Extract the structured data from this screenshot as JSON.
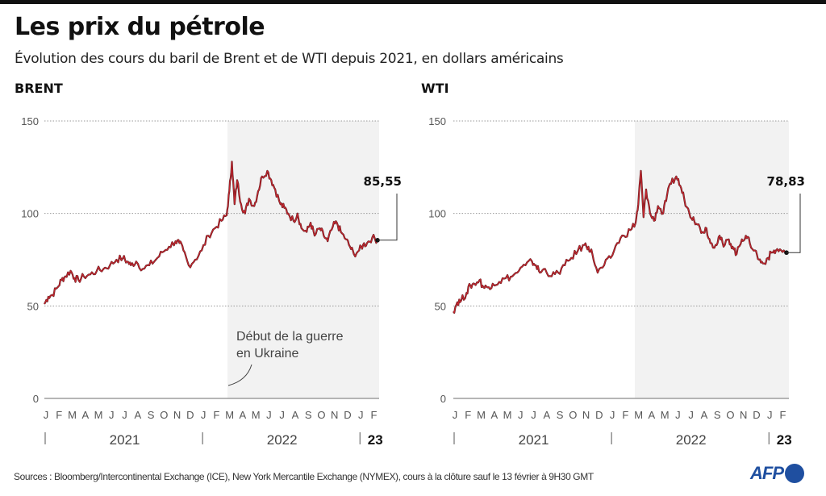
{
  "header": {
    "title": "Les prix du pétrole",
    "subtitle": "Évolution des cours du baril de Brent et de WTI depuis 2021, en dollars américains"
  },
  "annotation": {
    "war_line1": "Début de la guerre",
    "war_line2": "en Ukraine"
  },
  "footer": {
    "sources": "Sources : Bloomberg/Intercontinental Exchange (ICE), New York Mercantile  Exchange (NYMEX), cours à la clôture sauf le 13 février à 9H30 GMT",
    "logo_text": "AFP"
  },
  "colors": {
    "line": "#c4262e",
    "line_dark": "#5a1a1e",
    "shade": "#f2f2f2",
    "grid": "#9a9a9a",
    "logo": "#1f4fa0"
  },
  "chart_data": [
    {
      "type": "line",
      "title": "BRENT",
      "xlabel": "",
      "ylabel": "",
      "ylim": [
        0,
        150
      ],
      "yticks": [
        "0",
        "50",
        "100",
        "150"
      ],
      "grid": true,
      "month_labels": [
        "J",
        "F",
        "M",
        "A",
        "M",
        "J",
        "J",
        "A",
        "S",
        "O",
        "N",
        "D",
        "J",
        "F",
        "M",
        "A",
        "M",
        "J",
        "J",
        "A",
        "S",
        "O",
        "N",
        "D",
        "J",
        "F"
      ],
      "year_labels": [
        "2021",
        "2022",
        "23"
      ],
      "shaded_from": "2022-02-24",
      "shaded_label": "Début de la guerre en Ukraine",
      "last_value_label": "85,55",
      "x_months": [
        0,
        0.3,
        0.6,
        1.0,
        1.3,
        1.6,
        2.0,
        2.3,
        2.6,
        3.0,
        3.5,
        4.0,
        4.5,
        5.0,
        5.5,
        6.0,
        6.3,
        6.6,
        7.0,
        7.5,
        8.0,
        8.5,
        9.0,
        9.5,
        10.0,
        10.3,
        10.6,
        11.0,
        11.5,
        12.0,
        12.5,
        13.0,
        13.5,
        13.9,
        14.1,
        14.3,
        14.5,
        14.7,
        15.0,
        15.3,
        15.6,
        16.0,
        16.3,
        16.6,
        17.0,
        17.3,
        17.6,
        18.0,
        18.3,
        18.6,
        19.0,
        19.3,
        19.6,
        20.0,
        20.3,
        20.6,
        21.0,
        21.3,
        21.6,
        22.0,
        22.3,
        22.6,
        23.0,
        23.3,
        23.6,
        24.0,
        24.3,
        24.6,
        25.0,
        25.4
      ],
      "values": [
        51,
        55,
        56,
        60,
        64,
        66,
        69,
        65,
        64,
        66,
        67,
        69,
        70,
        72,
        75,
        76,
        74,
        72,
        74,
        70,
        72,
        75,
        79,
        82,
        85,
        84,
        80,
        72,
        75,
        80,
        88,
        92,
        96,
        99,
        112,
        128,
        105,
        118,
        105,
        100,
        108,
        104,
        112,
        120,
        123,
        118,
        113,
        105,
        103,
        100,
        96,
        100,
        92,
        90,
        95,
        88,
        92,
        88,
        85,
        93,
        95,
        90,
        86,
        82,
        78,
        80,
        83,
        84,
        87,
        85.55
      ],
      "series": [
        {
          "name": "Brent",
          "values_ref": "values"
        }
      ]
    },
    {
      "type": "line",
      "title": "WTI",
      "xlabel": "",
      "ylabel": "",
      "ylim": [
        0,
        150
      ],
      "yticks": [
        "0",
        "50",
        "100",
        "150"
      ],
      "grid": true,
      "month_labels": [
        "J",
        "F",
        "M",
        "A",
        "M",
        "J",
        "J",
        "A",
        "S",
        "O",
        "N",
        "D",
        "J",
        "F",
        "M",
        "A",
        "M",
        "J",
        "J",
        "A",
        "S",
        "O",
        "N",
        "D",
        "J",
        "F"
      ],
      "year_labels": [
        "2021",
        "2022",
        "23"
      ],
      "shaded_from": "2022-02-24",
      "last_value_label": "78,83",
      "x_months": [
        0,
        0.3,
        0.6,
        1.0,
        1.3,
        1.6,
        2.0,
        2.3,
        2.6,
        3.0,
        3.5,
        4.0,
        4.5,
        5.0,
        5.5,
        6.0,
        6.3,
        6.6,
        7.0,
        7.5,
        8.0,
        8.5,
        9.0,
        9.5,
        10.0,
        10.3,
        10.6,
        11.0,
        11.5,
        12.0,
        12.5,
        13.0,
        13.5,
        13.9,
        14.1,
        14.3,
        14.5,
        14.7,
        15.0,
        15.3,
        15.6,
        16.0,
        16.3,
        16.6,
        17.0,
        17.3,
        17.6,
        18.0,
        18.3,
        18.6,
        19.0,
        19.3,
        19.6,
        20.0,
        20.3,
        20.6,
        21.0,
        21.3,
        21.6,
        22.0,
        22.3,
        22.6,
        23.0,
        23.3,
        23.6,
        24.0,
        24.3,
        24.6,
        25.0,
        25.4
      ],
      "values": [
        47,
        52,
        53,
        57,
        61,
        62,
        64,
        60,
        60,
        62,
        63,
        65,
        66,
        69,
        72,
        74,
        72,
        68,
        70,
        66,
        68,
        72,
        76,
        80,
        83,
        82,
        78,
        68,
        72,
        76,
        84,
        88,
        91,
        95,
        105,
        123,
        98,
        113,
        100,
        96,
        104,
        100,
        110,
        116,
        120,
        115,
        108,
        100,
        98,
        94,
        90,
        92,
        84,
        83,
        88,
        82,
        86,
        82,
        78,
        86,
        88,
        84,
        80,
        75,
        73,
        76,
        79,
        80,
        80,
        78.83
      ],
      "series": [
        {
          "name": "WTI",
          "values_ref": "values"
        }
      ]
    }
  ]
}
